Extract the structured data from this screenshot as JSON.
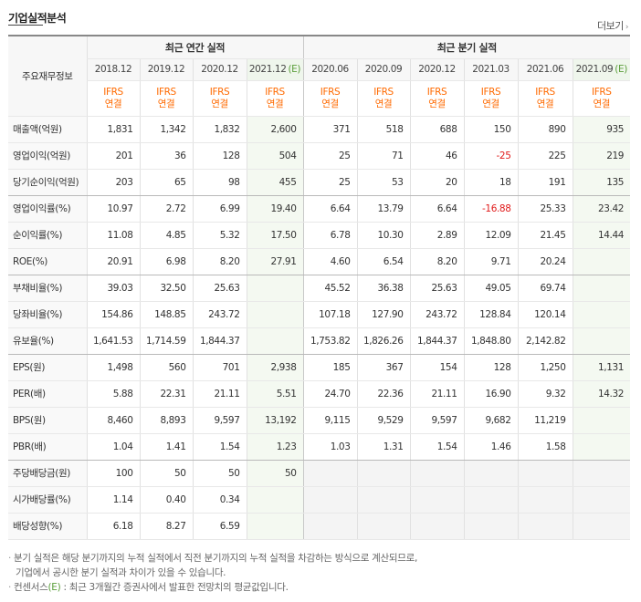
{
  "header": {
    "title": "기업실적분석",
    "more_label": "더보기",
    "more_arrow": "›"
  },
  "table": {
    "row_header": "주요재무정보",
    "group_annual": "최근 연간 실적",
    "group_quarter": "최근 분기 실적",
    "periods": [
      "2018.12",
      "2019.12",
      "2020.12",
      "2021.12",
      "2020.06",
      "2020.09",
      "2020.12",
      "2021.03",
      "2021.06",
      "2021.09"
    ],
    "estimate_suffix": "(E)",
    "basis_line1": "IFRS",
    "basis_line2": "연결",
    "rows": [
      {
        "label": "매출액(억원)",
        "values": [
          "1,831",
          "1,342",
          "1,832",
          "2,600",
          "371",
          "518",
          "688",
          "150",
          "890",
          "935"
        ]
      },
      {
        "label": "영업이익(억원)",
        "values": [
          "201",
          "36",
          "128",
          "504",
          "25",
          "71",
          "46",
          "-25",
          "225",
          "219"
        ]
      },
      {
        "label": "당기순이익(억원)",
        "values": [
          "203",
          "65",
          "98",
          "455",
          "25",
          "53",
          "20",
          "18",
          "191",
          "135"
        ]
      },
      {
        "label": "영업이익률(%)",
        "values": [
          "10.97",
          "2.72",
          "6.99",
          "19.40",
          "6.64",
          "13.79",
          "6.64",
          "-16.88",
          "25.33",
          "23.42"
        ]
      },
      {
        "label": "순이익률(%)",
        "values": [
          "11.08",
          "4.85",
          "5.32",
          "17.50",
          "6.78",
          "10.30",
          "2.89",
          "12.09",
          "21.45",
          "14.44"
        ]
      },
      {
        "label": "ROE(%)",
        "values": [
          "20.91",
          "6.98",
          "8.20",
          "27.91",
          "4.60",
          "6.54",
          "8.20",
          "9.71",
          "20.24",
          ""
        ]
      },
      {
        "label": "부채비율(%)",
        "values": [
          "39.03",
          "32.50",
          "25.63",
          "",
          "45.52",
          "36.38",
          "25.63",
          "49.05",
          "69.74",
          ""
        ]
      },
      {
        "label": "당좌비율(%)",
        "values": [
          "154.86",
          "148.85",
          "243.72",
          "",
          "107.18",
          "127.90",
          "243.72",
          "128.84",
          "120.14",
          ""
        ]
      },
      {
        "label": "유보율(%)",
        "values": [
          "1,641.53",
          "1,714.59",
          "1,844.37",
          "",
          "1,753.82",
          "1,826.26",
          "1,844.37",
          "1,848.80",
          "2,142.82",
          ""
        ]
      },
      {
        "label": "EPS(원)",
        "values": [
          "1,498",
          "560",
          "701",
          "2,938",
          "185",
          "367",
          "154",
          "128",
          "1,250",
          "1,131"
        ]
      },
      {
        "label": "PER(배)",
        "values": [
          "5.88",
          "22.31",
          "21.11",
          "5.51",
          "24.70",
          "22.36",
          "21.11",
          "16.90",
          "9.32",
          "14.32"
        ]
      },
      {
        "label": "BPS(원)",
        "values": [
          "8,460",
          "8,893",
          "9,597",
          "13,192",
          "9,115",
          "9,529",
          "9,597",
          "9,682",
          "11,219",
          ""
        ]
      },
      {
        "label": "PBR(배)",
        "values": [
          "1.04",
          "1.41",
          "1.54",
          "1.23",
          "1.03",
          "1.31",
          "1.54",
          "1.46",
          "1.58",
          ""
        ]
      },
      {
        "label": "주당배당금(원)",
        "values": [
          "100",
          "50",
          "50",
          "50",
          "",
          "",
          "",
          "",
          "",
          ""
        ]
      },
      {
        "label": "시가배당률(%)",
        "values": [
          "1.14",
          "0.40",
          "0.34",
          "",
          "",
          "",
          "",
          "",
          "",
          ""
        ]
      },
      {
        "label": "배당성향(%)",
        "values": [
          "6.18",
          "8.27",
          "6.59",
          "",
          "",
          "",
          "",
          "",
          "",
          ""
        ]
      }
    ]
  },
  "notes": {
    "bullet": "·",
    "line1": "분기 실적은 해당 분기까지의 누적 실적에서 직전 분기까지의 누적 실적을 차감하는 방식으로 계산되므로,",
    "line2": "기업에서 공시한 분기 실적과 차이가 있을 수 있습니다.",
    "line3_a": "컨센서스",
    "line3_e": "(E)",
    "line3_b": " : 최근 3개월간 증권사에서 발표한 전망치의 평균값입니다."
  },
  "colors": {
    "ifrs": "#ff6a00",
    "negative": "#e01a1a",
    "estimate": "#5a9e3a"
  }
}
